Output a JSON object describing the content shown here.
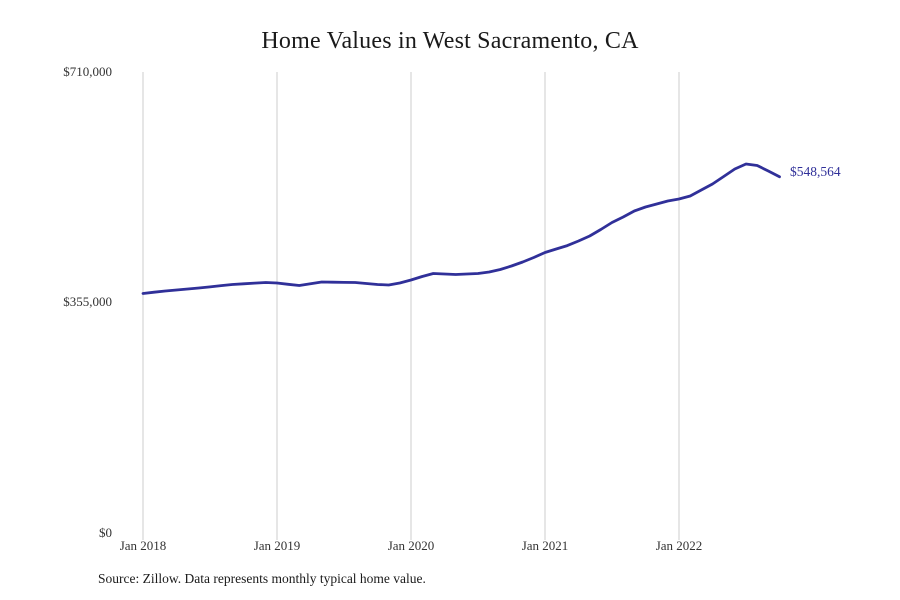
{
  "page": {
    "title": "Home Values in West Sacramento, CA",
    "source_note": "Source: Zillow. Data represents monthly typical home value."
  },
  "y_axis": {
    "labels": [
      "$710,000",
      "$355,000",
      "$0"
    ]
  },
  "x_axis": {
    "labels": [
      "Jan 2018",
      "Jan 2019",
      "Jan 2020",
      "Jan 2021",
      "Jan 2022"
    ]
  },
  "annotation": {
    "end_value_label": "$548,564"
  },
  "colors": {
    "line": "#303099",
    "grid": "#cccccc",
    "text": "#333333",
    "title": "#1a1a1a"
  },
  "chart_data": {
    "type": "line",
    "title": "Home Values in West Sacramento, CA",
    "series_name": "Typical home value (monthly, Zillow)",
    "x": [
      "Jan 2018",
      "Feb 2018",
      "Mar 2018",
      "Apr 2018",
      "May 2018",
      "Jun 2018",
      "Jul 2018",
      "Aug 2018",
      "Sep 2018",
      "Oct 2018",
      "Nov 2018",
      "Dec 2018",
      "Jan 2019",
      "Feb 2019",
      "Mar 2019",
      "Apr 2019",
      "May 2019",
      "Jun 2019",
      "Jul 2019",
      "Aug 2019",
      "Sep 2019",
      "Oct 2019",
      "Nov 2019",
      "Dec 2019",
      "Jan 2020",
      "Feb 2020",
      "Mar 2020",
      "Apr 2020",
      "May 2020",
      "Jun 2020",
      "Jul 2020",
      "Aug 2020",
      "Sep 2020",
      "Oct 2020",
      "Nov 2020",
      "Dec 2020",
      "Jan 2021",
      "Feb 2021",
      "Mar 2021",
      "Apr 2021",
      "May 2021",
      "Jun 2021",
      "Jul 2021",
      "Aug 2021",
      "Sep 2021",
      "Oct 2021",
      "Nov 2021",
      "Dec 2021",
      "Jan 2022",
      "Feb 2022",
      "Mar 2022",
      "Apr 2022",
      "May 2022",
      "Jun 2022",
      "Jul 2022",
      "Aug 2022",
      "Sep 2022",
      "Oct 2022"
    ],
    "values": [
      368900,
      370800,
      372700,
      374200,
      375800,
      377300,
      379100,
      381000,
      382700,
      383800,
      384900,
      385800,
      385000,
      383000,
      381200,
      383900,
      386600,
      386300,
      386000,
      385800,
      384300,
      382700,
      381900,
      385000,
      389600,
      395000,
      399600,
      398900,
      398100,
      398900,
      399600,
      401900,
      405800,
      411200,
      417300,
      424300,
      432000,
      437400,
      442700,
      449700,
      457400,
      467400,
      478200,
      486700,
      495900,
      502100,
      506700,
      511300,
      514400,
      519000,
      528300,
      537500,
      549100,
      560600,
      568300,
      566000,
      557500,
      548564
    ],
    "ylim": [
      0,
      710000
    ],
    "y_ticks": [
      0,
      355000,
      710000
    ],
    "x_tick_labels": [
      "Jan 2018",
      "Jan 2019",
      "Jan 2020",
      "Jan 2021",
      "Jan 2022"
    ],
    "end_label": "$548,564",
    "grid": "vertical-only",
    "legend": "none",
    "xlabel": "",
    "ylabel": ""
  }
}
